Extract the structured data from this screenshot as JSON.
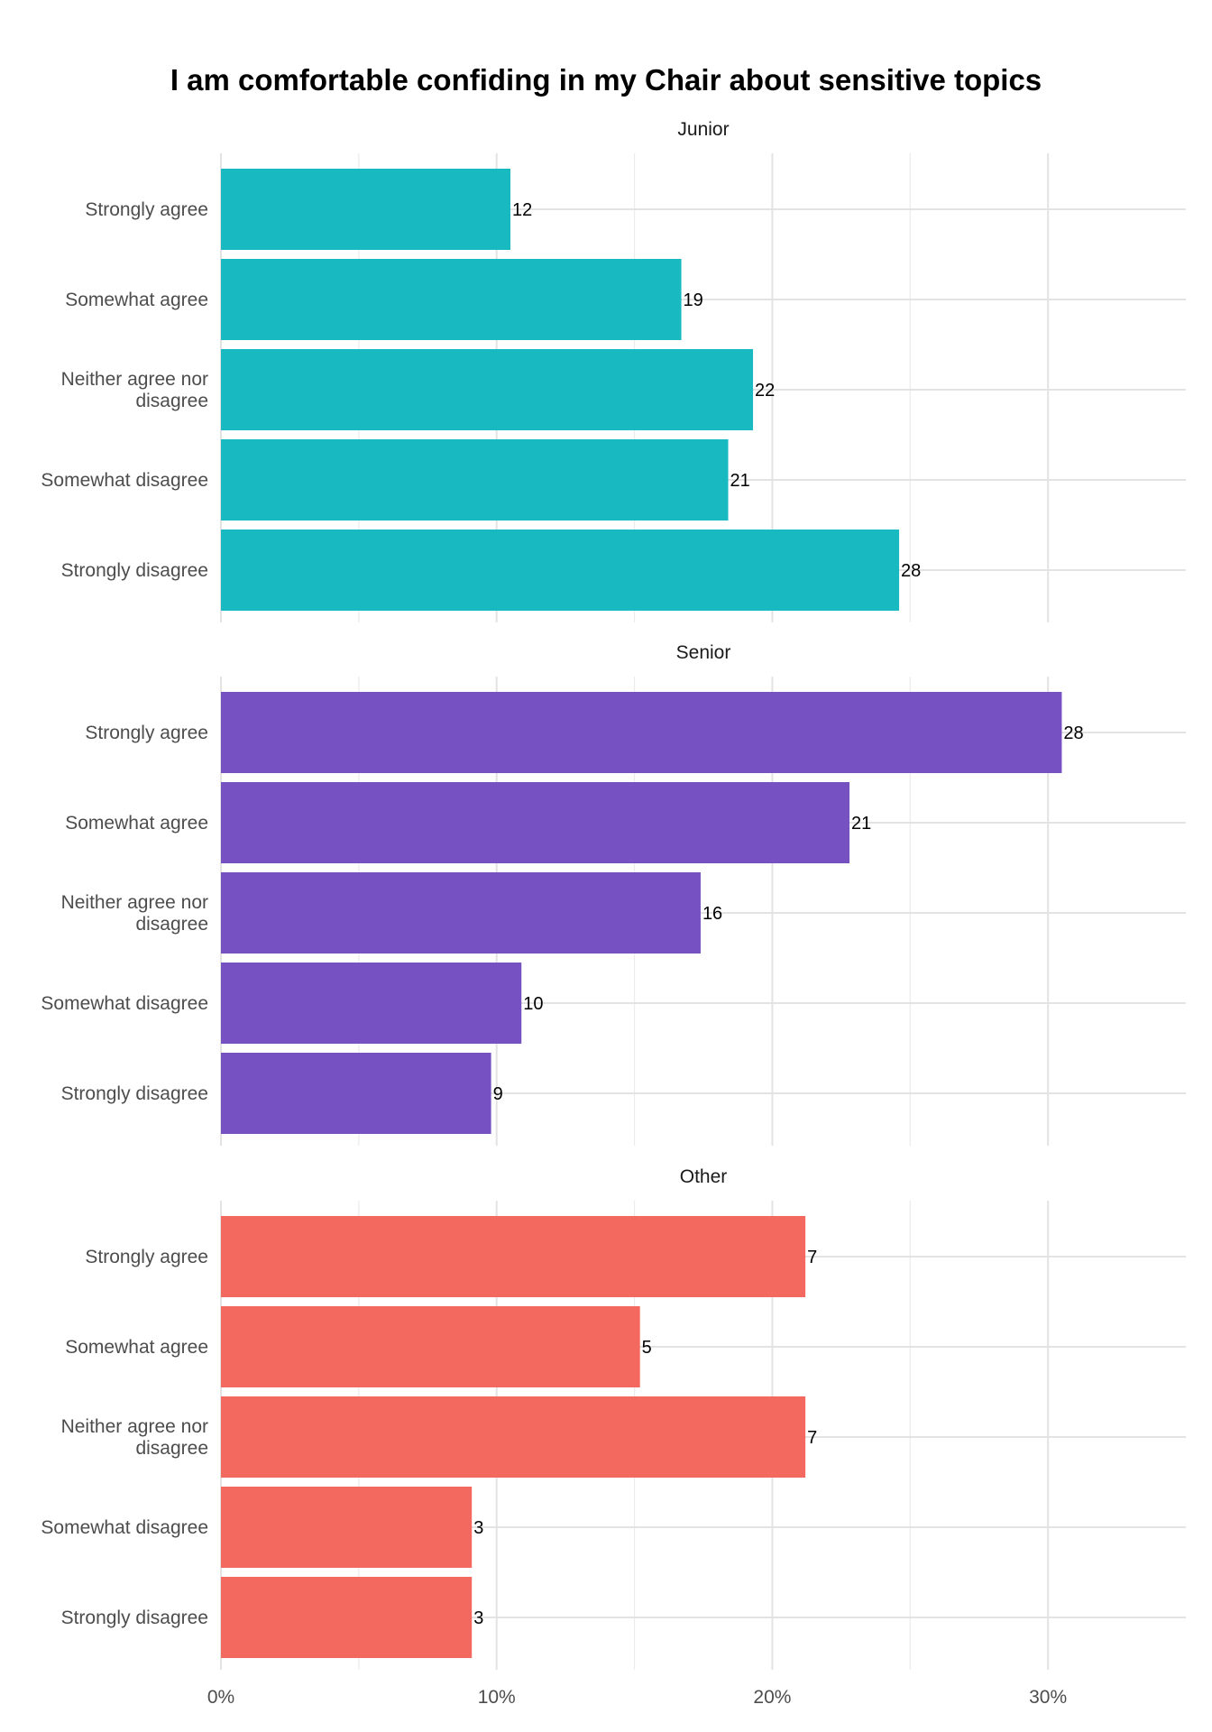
{
  "chart_data": {
    "type": "bar",
    "orientation": "horizontal",
    "title": "I am comfortable confiding in my Chair about sensitive topics",
    "xlabel": "",
    "ylabel": "",
    "xlim": [
      0,
      0.35
    ],
    "x_ticks": [
      0,
      0.1,
      0.2,
      0.3
    ],
    "x_tick_labels": [
      "0%",
      "10%",
      "20%",
      "30%"
    ],
    "grid": true,
    "legend": "none",
    "categories": [
      "Strongly agree",
      "Somewhat agree",
      "Neither agree nor disagree",
      "Somewhat disagree",
      "Strongly disagree"
    ],
    "category_lines": [
      [
        "Strongly agree"
      ],
      [
        "Somewhat agree"
      ],
      [
        "Neither agree nor",
        "disagree"
      ],
      [
        "Somewhat disagree"
      ],
      [
        "Strongly disagree"
      ]
    ],
    "panels": [
      {
        "name": "Junior",
        "color": "#19B9C1",
        "percent": [
          0.105,
          0.167,
          0.193,
          0.184,
          0.246
        ],
        "counts": [
          12,
          19,
          22,
          21,
          28
        ]
      },
      {
        "name": "Senior",
        "color": "#7551C1",
        "percent": [
          0.305,
          0.228,
          0.174,
          0.109,
          0.098
        ],
        "counts": [
          28,
          21,
          16,
          10,
          9
        ]
      },
      {
        "name": "Other",
        "color": "#F4695F",
        "percent": [
          0.212,
          0.152,
          0.212,
          0.091,
          0.091
        ],
        "counts": [
          7,
          5,
          7,
          3,
          3
        ]
      }
    ]
  }
}
